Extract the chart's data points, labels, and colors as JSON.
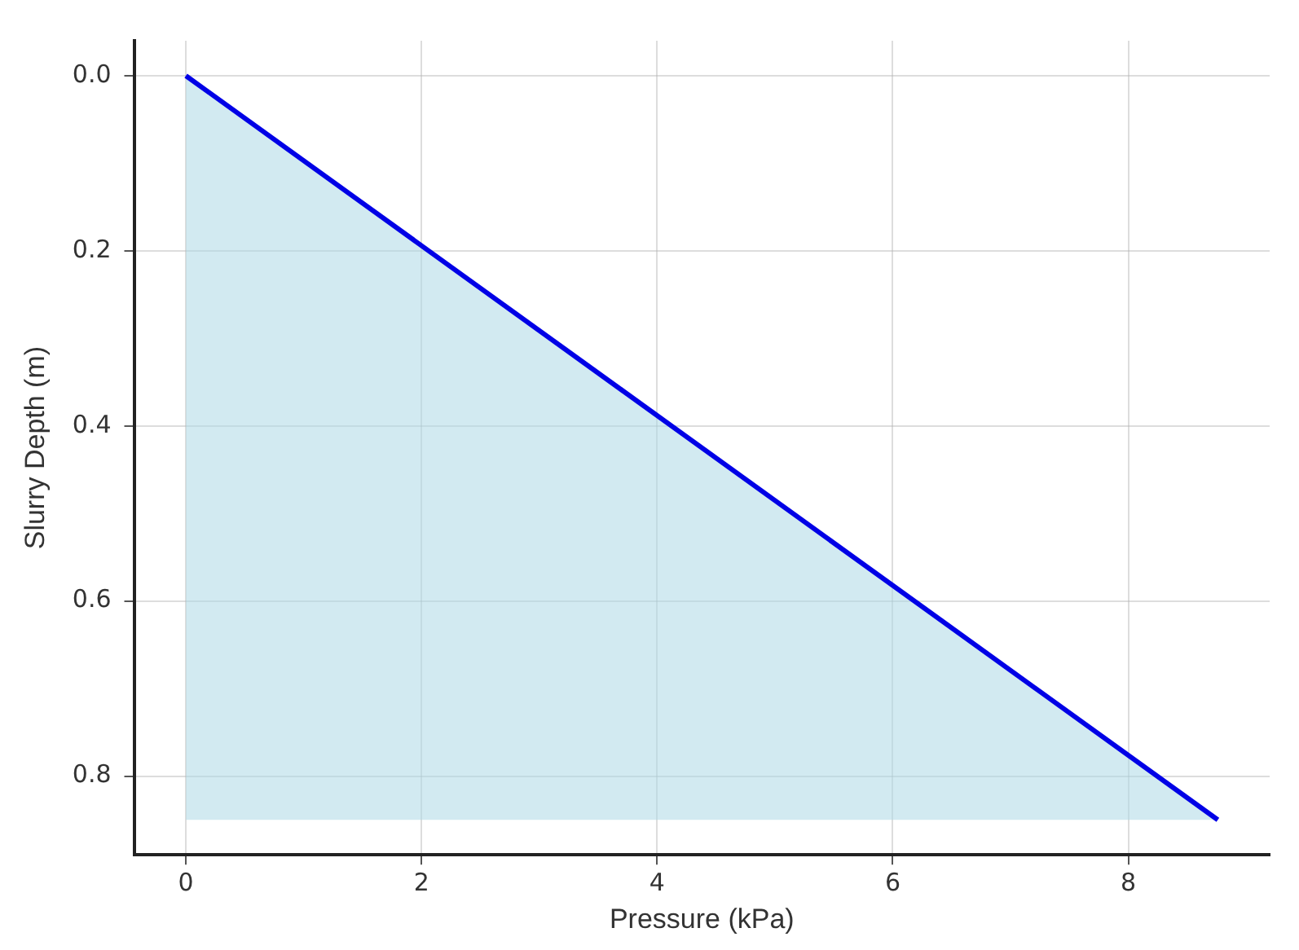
{
  "chart_data": {
    "type": "area",
    "xlabel": "Pressure (kPa)",
    "ylabel": "Slurry Depth (m)",
    "x": [
      0,
      8.76
    ],
    "series": [
      {
        "color": "#0000e6",
        "values": [
          0,
          0.85
        ]
      }
    ],
    "xlim": [
      -0.44,
      9.2
    ],
    "ylim": [
      0.89,
      -0.04
    ],
    "xticks": [
      0,
      2,
      4,
      6,
      8
    ],
    "yticks": [
      {
        "value": 0,
        "label": "0.0"
      },
      0.2,
      0.4,
      0.6,
      0.8
    ],
    "grid": true,
    "legend": false
  }
}
